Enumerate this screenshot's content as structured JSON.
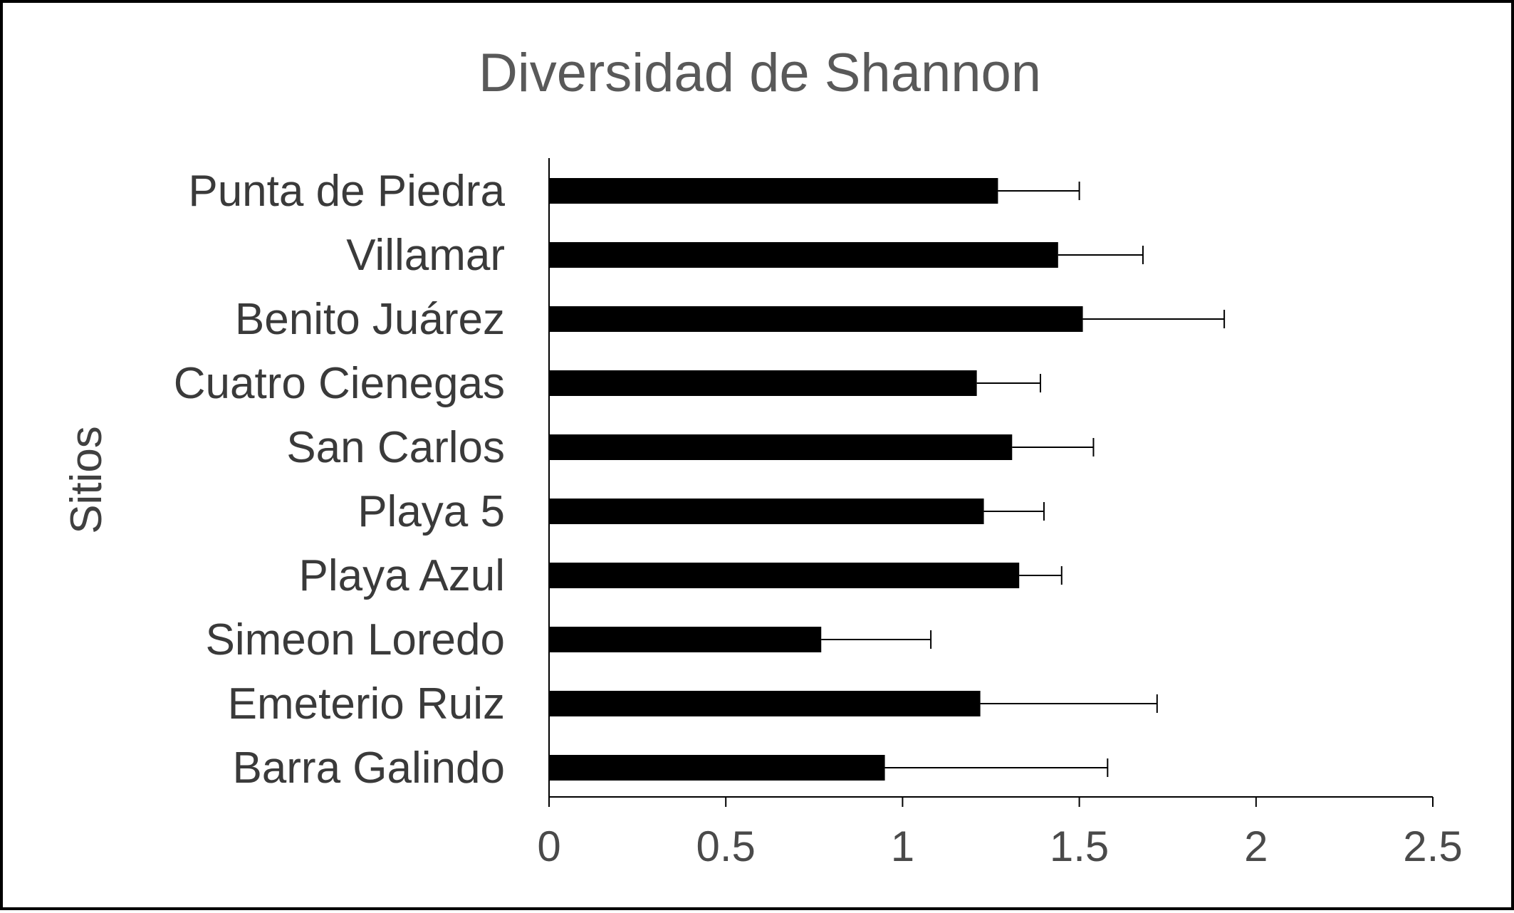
{
  "chart_data": {
    "type": "bar",
    "orientation": "horizontal",
    "title": "Diversidad de Shannon",
    "ylabel": "Sitios",
    "xlabel": "",
    "categories": [
      "Punta de Piedra",
      "Villamar",
      "Benito Juárez",
      "Cuatro Cienegas",
      "San Carlos",
      "Playa 5",
      "Playa Azul",
      "Simeon Loredo",
      "Emeterio Ruiz",
      "Barra Galindo"
    ],
    "values": [
      1.27,
      1.44,
      1.51,
      1.21,
      1.31,
      1.23,
      1.33,
      0.77,
      1.22,
      0.95
    ],
    "error_plus": [
      0.23,
      0.24,
      0.4,
      0.18,
      0.23,
      0.17,
      0.12,
      0.31,
      0.5,
      0.63
    ],
    "xlim": [
      0,
      2.5
    ],
    "xticks": [
      "0",
      "0.5",
      "1",
      "1.5",
      "2",
      "2.5"
    ],
    "xtick_values": [
      0,
      0.5,
      1,
      1.5,
      2,
      2.5
    ],
    "grid": false,
    "bar_color": "#000000"
  }
}
